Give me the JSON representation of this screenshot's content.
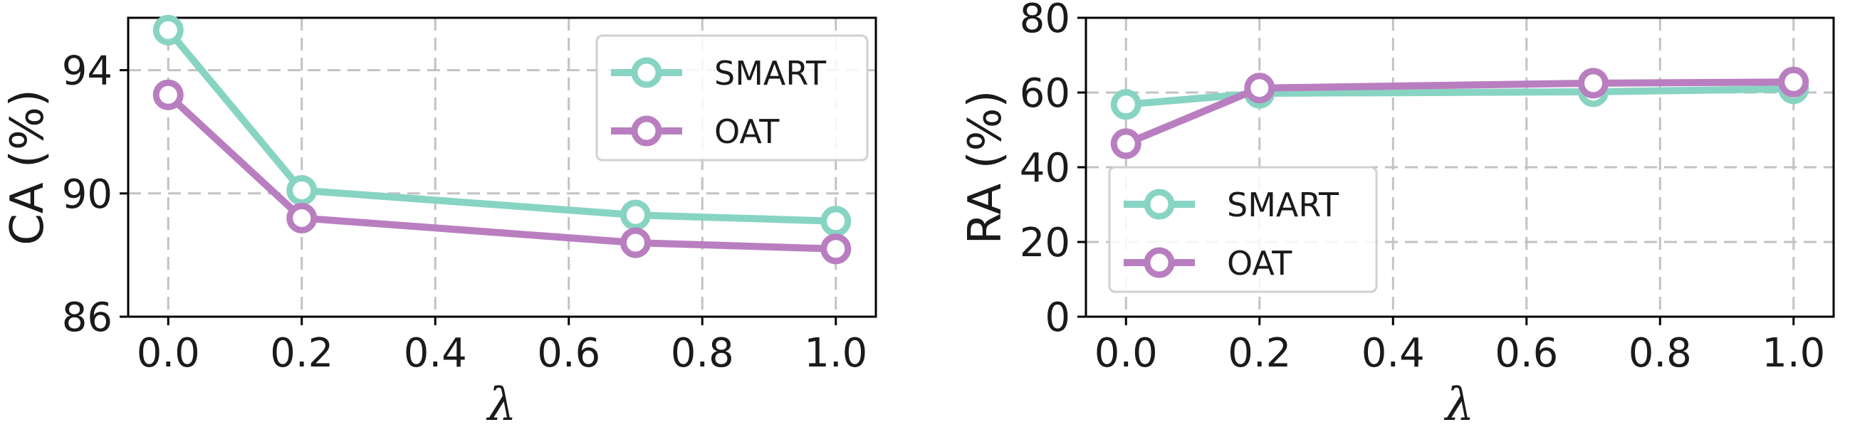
{
  "colors": {
    "SMART": "#88d4c3",
    "OAT": "#b97ec0",
    "grid": "#c2c2c2",
    "axis": "#000000"
  },
  "chart_data": [
    {
      "type": "line",
      "xlabel": "λ",
      "ylabel": "CA (%)",
      "xlim": [
        -0.06,
        1.06
      ],
      "ylim": [
        86,
        95.7
      ],
      "x": [
        0.0,
        0.2,
        0.7,
        1.0
      ],
      "xticks": [
        "0.0",
        "0.2",
        "0.4",
        "0.6",
        "0.8",
        "1.0"
      ],
      "xtick_values": [
        0.0,
        0.2,
        0.4,
        0.6,
        0.8,
        1.0
      ],
      "yticks": [
        "86",
        "90",
        "94"
      ],
      "ytick_values": [
        86,
        90,
        94
      ],
      "grid": true,
      "legend_position": "upper-right",
      "series": [
        {
          "name": "SMART",
          "values": [
            95.3,
            90.1,
            89.3,
            89.1
          ]
        },
        {
          "name": "OAT",
          "values": [
            93.2,
            89.2,
            88.4,
            88.2
          ]
        }
      ]
    },
    {
      "type": "line",
      "xlabel": "λ",
      "ylabel": "RA (%)",
      "xlim": [
        -0.06,
        1.06
      ],
      "ylim": [
        0,
        80
      ],
      "x": [
        0.0,
        0.2,
        0.7,
        1.0
      ],
      "xticks": [
        "0.0",
        "0.2",
        "0.4",
        "0.6",
        "0.8",
        "1.0"
      ],
      "xtick_values": [
        0.0,
        0.2,
        0.4,
        0.6,
        0.8,
        1.0
      ],
      "yticks": [
        "0",
        "20",
        "40",
        "60",
        "80"
      ],
      "ytick_values": [
        0,
        20,
        40,
        60,
        80
      ],
      "grid": true,
      "legend_position": "lower-left",
      "series": [
        {
          "name": "SMART",
          "values": [
            56.8,
            59.8,
            60.2,
            61.0
          ]
        },
        {
          "name": "OAT",
          "values": [
            46.3,
            61.2,
            62.5,
            62.8
          ]
        }
      ]
    }
  ]
}
